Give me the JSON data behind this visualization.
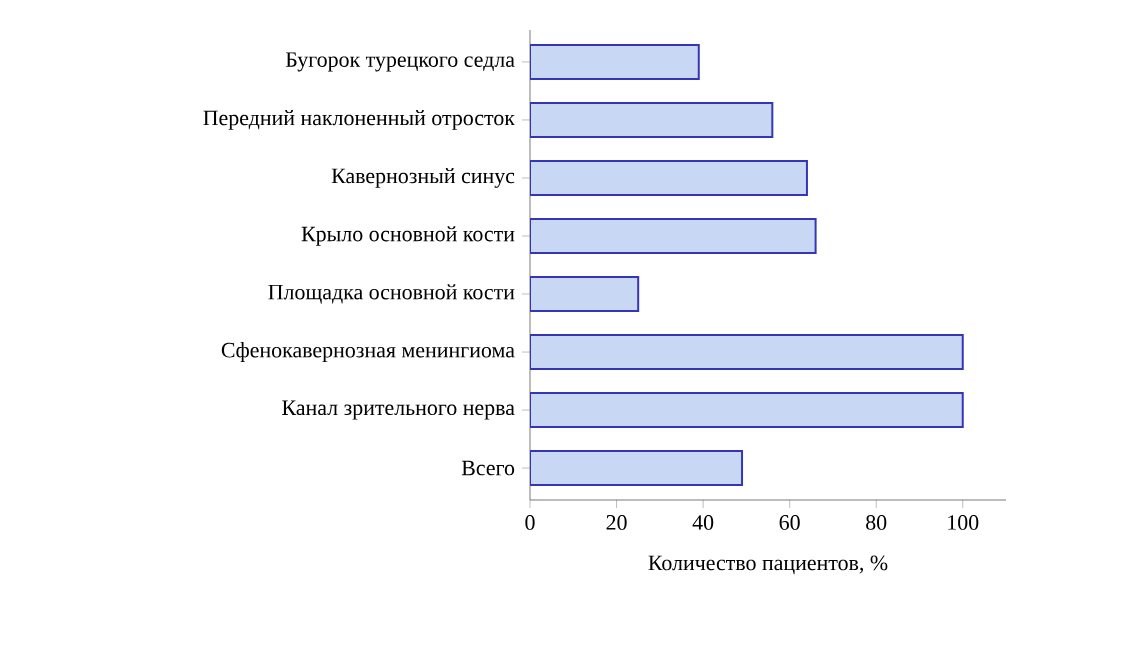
{
  "chart_data": {
    "type": "bar",
    "orientation": "horizontal",
    "xlabel": "Количество пациентов, %",
    "categories": [
      "Бугорок турецкого седла",
      "Передний наклоненный отросток",
      "Кавернозный синус",
      "Крыло основной кости",
      "Площадка основной кости",
      "Сфенокавернозная менингиома",
      "Канал зрительного нерва",
      "Всего"
    ],
    "values": [
      39,
      56,
      64,
      66,
      25,
      100,
      100,
      49
    ],
    "color": "#c8d8f4",
    "xlim": [
      0,
      110
    ],
    "xticks": [
      0,
      20,
      40,
      60,
      80,
      100
    ]
  }
}
